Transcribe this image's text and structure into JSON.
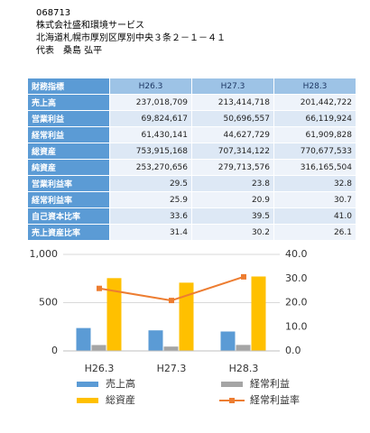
{
  "header": {
    "lines": [
      "068713",
      "株式会社盛和環境サービス",
      "北海道札幌市厚別区厚別中央３条２－１－４１",
      "代表　桑島 弘平"
    ]
  },
  "table": {
    "header": [
      "財務指標",
      "H26.3",
      "H27.3",
      "H28.3"
    ],
    "rows": [
      [
        "売上高",
        "237,018,709",
        "213,414,718",
        "201,442,722"
      ],
      [
        "営業利益",
        "69,824,617",
        "50,696,557",
        "66,119,924"
      ],
      [
        "経常利益",
        "61,430,141",
        "44,627,729",
        "61,909,828"
      ],
      [
        "総資産",
        "753,915,168",
        "707,314,122",
        "770,677,533"
      ],
      [
        "純資産",
        "253,270,656",
        "279,713,576",
        "316,165,504"
      ],
      [
        "営業利益率",
        "29.5",
        "23.8",
        "32.8"
      ],
      [
        "経常利益率",
        "25.9",
        "20.9",
        "30.7"
      ],
      [
        "自己資本比率",
        "33.6",
        "39.5",
        "41.0"
      ],
      [
        "売上資産比率",
        "31.4",
        "30.2",
        "26.1"
      ]
    ]
  },
  "chart_data": {
    "type": "bar",
    "categories": [
      "H26.3",
      "H27.3",
      "H28.3"
    ],
    "series": [
      {
        "name": "売上高",
        "color": "#5b9bd5",
        "values": [
          237,
          213,
          201
        ]
      },
      {
        "name": "経常利益",
        "color": "#a5a5a5",
        "values": [
          61,
          45,
          62
        ]
      },
      {
        "name": "総資産",
        "color": "#ffc000",
        "values": [
          754,
          707,
          771
        ]
      },
      {
        "name": "経常利益率",
        "color": "#ed7d31",
        "type": "line",
        "axis": "y2",
        "values": [
          25.9,
          20.9,
          30.7
        ]
      }
    ],
    "ylim": [
      0,
      1000
    ],
    "yticks": [
      0,
      500,
      {
        "value": 1000,
        "label": "1,000"
      }
    ],
    "y2lim": [
      0,
      40
    ],
    "y2ticks": [
      {
        "value": 0,
        "label": "0.0"
      },
      {
        "value": 10,
        "label": "10.0"
      },
      {
        "value": 20,
        "label": "20.0"
      },
      {
        "value": 30,
        "label": "30.0"
      },
      {
        "value": 40,
        "label": "40.0"
      }
    ],
    "grid": true,
    "legend": "bottom"
  }
}
